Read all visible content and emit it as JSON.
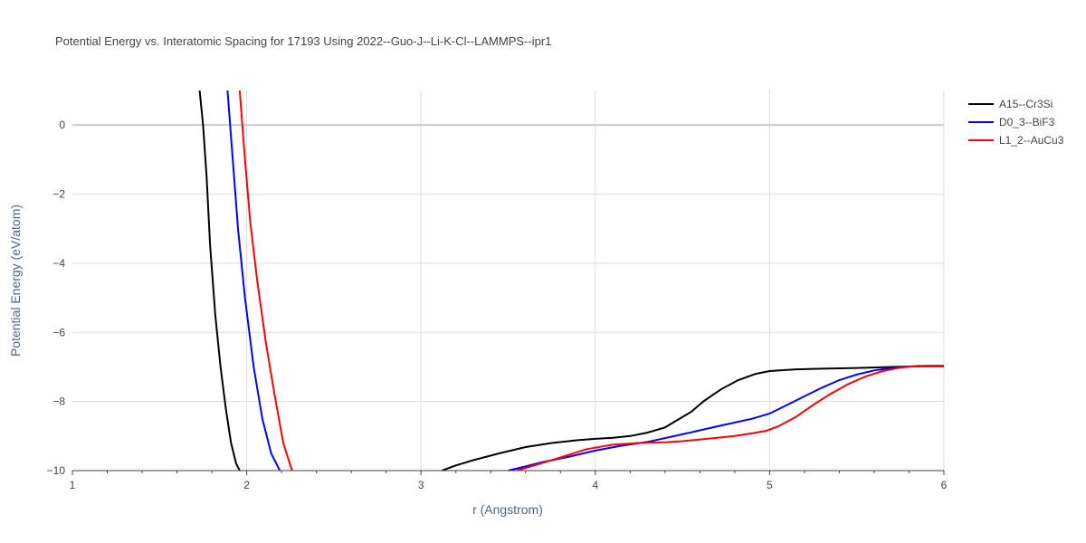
{
  "chart_data": {
    "type": "line",
    "title": "Potential Energy vs. Interatomic Spacing for 17193 Using 2022--Guo-J--Li-K-Cl--LAMMPS--ipr1",
    "xlabel": "r (Angstrom)",
    "ylabel": "Potential Energy (eV/atom)",
    "xlim": [
      1,
      6
    ],
    "ylim": [
      -10,
      1
    ],
    "xticks": [
      1,
      2,
      3,
      4,
      5,
      6
    ],
    "xtick_labels": [
      "1",
      "2",
      "3",
      "4",
      "5",
      "6"
    ],
    "yticks": [
      0,
      -2,
      -4,
      -6,
      -8,
      -10
    ],
    "ytick_labels": [
      "0",
      "−2",
      "−4",
      "−6",
      "−8",
      "−10"
    ],
    "grid": true,
    "legend_position": "top-right",
    "series": [
      {
        "name": "A15--Cr3Si",
        "color": "#000000",
        "points": [
          [
            1.73,
            1.0
          ],
          [
            1.75,
            0.0
          ],
          [
            1.77,
            -1.5
          ],
          [
            1.79,
            -3.5
          ],
          [
            1.82,
            -5.5
          ],
          [
            1.85,
            -7.0
          ],
          [
            1.88,
            -8.2
          ],
          [
            1.91,
            -9.2
          ],
          [
            1.94,
            -9.8
          ],
          [
            1.96,
            -10.0
          ],
          [
            3.12,
            -10.0
          ],
          [
            3.2,
            -9.85
          ],
          [
            3.3,
            -9.7
          ],
          [
            3.45,
            -9.5
          ],
          [
            3.6,
            -9.32
          ],
          [
            3.75,
            -9.2
          ],
          [
            3.9,
            -9.12
          ],
          [
            4.0,
            -9.08
          ],
          [
            4.1,
            -9.05
          ],
          [
            4.2,
            -9.0
          ],
          [
            4.3,
            -8.9
          ],
          [
            4.4,
            -8.75
          ],
          [
            4.45,
            -8.6
          ],
          [
            4.55,
            -8.3
          ],
          [
            4.62,
            -8.0
          ],
          [
            4.72,
            -7.65
          ],
          [
            4.82,
            -7.38
          ],
          [
            4.92,
            -7.2
          ],
          [
            5.0,
            -7.12
          ],
          [
            5.15,
            -7.07
          ],
          [
            5.3,
            -7.05
          ],
          [
            5.5,
            -7.03
          ],
          [
            5.7,
            -7.0
          ],
          [
            5.85,
            -6.98
          ],
          [
            6.0,
            -6.98
          ]
        ]
      },
      {
        "name": "D0_3--BiF3",
        "color": "#0000ff",
        "points": [
          [
            1.89,
            1.0
          ],
          [
            1.92,
            -1.0
          ],
          [
            1.95,
            -3.0
          ],
          [
            1.99,
            -5.0
          ],
          [
            2.04,
            -7.0
          ],
          [
            2.09,
            -8.5
          ],
          [
            2.14,
            -9.5
          ],
          [
            2.19,
            -10.0
          ],
          [
            3.5,
            -10.0
          ],
          [
            3.6,
            -9.88
          ],
          [
            3.7,
            -9.75
          ],
          [
            3.85,
            -9.6
          ],
          [
            4.0,
            -9.42
          ],
          [
            4.15,
            -9.28
          ],
          [
            4.3,
            -9.17
          ],
          [
            4.5,
            -8.95
          ],
          [
            4.7,
            -8.72
          ],
          [
            4.9,
            -8.5
          ],
          [
            5.0,
            -8.35
          ],
          [
            5.1,
            -8.1
          ],
          [
            5.2,
            -7.85
          ],
          [
            5.3,
            -7.6
          ],
          [
            5.4,
            -7.38
          ],
          [
            5.5,
            -7.22
          ],
          [
            5.6,
            -7.1
          ],
          [
            5.7,
            -7.03
          ],
          [
            5.8,
            -6.99
          ],
          [
            5.9,
            -6.97
          ],
          [
            6.0,
            -6.97
          ]
        ]
      },
      {
        "name": "L1_2--AuCu3",
        "color": "#ff0000",
        "points": [
          [
            1.96,
            1.0
          ],
          [
            1.99,
            -1.0
          ],
          [
            2.02,
            -2.8
          ],
          [
            2.06,
            -4.5
          ],
          [
            2.11,
            -6.3
          ],
          [
            2.16,
            -7.8
          ],
          [
            2.21,
            -9.2
          ],
          [
            2.26,
            -10.0
          ],
          [
            3.55,
            -10.0
          ],
          [
            3.65,
            -9.85
          ],
          [
            3.8,
            -9.62
          ],
          [
            3.95,
            -9.38
          ],
          [
            4.1,
            -9.25
          ],
          [
            4.25,
            -9.2
          ],
          [
            4.4,
            -9.18
          ],
          [
            4.5,
            -9.15
          ],
          [
            4.6,
            -9.1
          ],
          [
            4.7,
            -9.05
          ],
          [
            4.8,
            -9.0
          ],
          [
            4.9,
            -8.92
          ],
          [
            4.98,
            -8.85
          ],
          [
            5.05,
            -8.72
          ],
          [
            5.15,
            -8.45
          ],
          [
            5.25,
            -8.1
          ],
          [
            5.35,
            -7.78
          ],
          [
            5.45,
            -7.5
          ],
          [
            5.55,
            -7.28
          ],
          [
            5.65,
            -7.12
          ],
          [
            5.75,
            -7.02
          ],
          [
            5.85,
            -6.97
          ],
          [
            6.0,
            -6.97
          ]
        ]
      }
    ]
  }
}
